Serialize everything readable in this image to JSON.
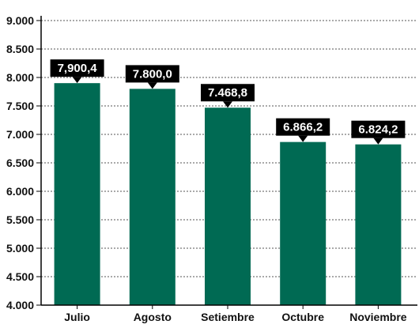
{
  "chart_data": {
    "type": "bar",
    "categories": [
      "Julio",
      "Agosto",
      "Setiembre",
      "Octubre",
      "Noviembre"
    ],
    "values": [
      7900.4,
      7800.0,
      7468.8,
      6866.2,
      6824.2
    ],
    "value_labels": [
      "7,900,4",
      "7.800,0",
      "7.468,8",
      "6.866,2",
      "6.824,2"
    ],
    "ylim": [
      4000,
      9000
    ],
    "yticks": [
      4000,
      4500,
      5000,
      5500,
      6000,
      6500,
      7000,
      7500,
      8000,
      8500,
      9000
    ],
    "ytick_labels": [
      "4.000",
      "4.500",
      "5.000",
      "5.500",
      "6.000",
      "6.500",
      "7.000",
      "7.500",
      "8.000",
      "8.500",
      "9.000"
    ],
    "grid": true,
    "title": "",
    "xlabel": "",
    "ylabel": "",
    "colors": {
      "bar": "#006a53",
      "label_bg": "#000000",
      "label_text": "#ffffff",
      "grid": "#555555",
      "axis": "#000000"
    }
  }
}
